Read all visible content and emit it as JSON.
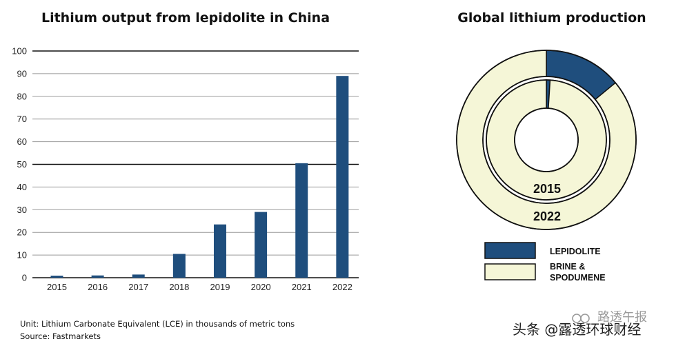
{
  "chart_data": [
    {
      "type": "bar",
      "title": "Lithium output from lepidolite in China",
      "categories": [
        "2015",
        "2016",
        "2017",
        "2018",
        "2019",
        "2020",
        "2021",
        "2022"
      ],
      "values": [
        0.9,
        1.0,
        1.4,
        10.5,
        23.5,
        29.0,
        50.5,
        89.0
      ],
      "ylim": [
        0,
        100
      ],
      "yticks": [
        "0",
        "10",
        "20",
        "30",
        "40",
        "50",
        "60",
        "70",
        "80",
        "90",
        "100"
      ],
      "grid": true,
      "bar_color": "#1f4e7d",
      "grid_color": "#999999",
      "emphasis_grid_color": "#111111",
      "xlabel": "",
      "ylabel": ""
    },
    {
      "type": "pie",
      "variant": "nested-donut",
      "title": "Global lithium production",
      "rings": [
        {
          "label": "2022",
          "slices": [
            {
              "name": "LEPIDOLITE",
              "value": 14
            },
            {
              "name": "BRINE & SPODUMENE",
              "value": 86
            }
          ]
        },
        {
          "label": "2015",
          "slices": [
            {
              "name": "LEPIDOLITE",
              "value": 1
            },
            {
              "name": "BRINE & SPODUMENE",
              "value": 99
            }
          ]
        }
      ],
      "legend": [
        {
          "label": "LEPIDOLITE",
          "color": "#1f4e7d"
        },
        {
          "label": "BRINE & SPODUMENE",
          "label_line1": "BRINE &",
          "label_line2": "SPODUMENE",
          "color": "#f5f6d7"
        }
      ],
      "outline_color": "#111111"
    }
  ],
  "footnote": {
    "unit": "Unit: Lithium Carbonate Equivalent (LCE) in thousands of metric tons",
    "source": "Source: Fastmarkets"
  },
  "watermark": {
    "back": "路透午报",
    "front": "头条 @露透环球财经"
  }
}
